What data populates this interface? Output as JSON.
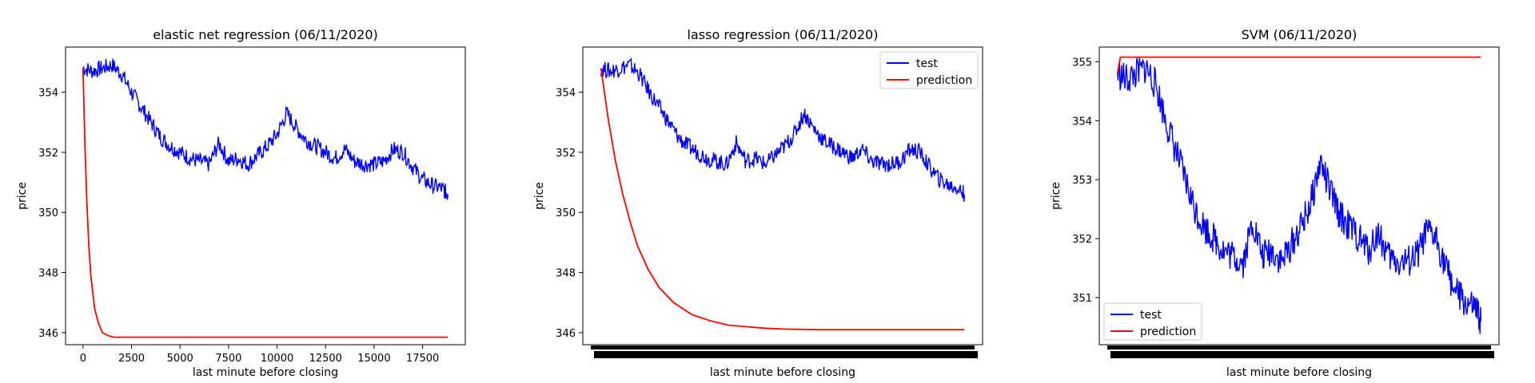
{
  "chart_data": [
    {
      "type": "line",
      "title": "elastic net regression (06/11/2020)",
      "xlabel": "last minute before closing",
      "ylabel": "price",
      "xlim": [
        -900,
        19700
      ],
      "ylim": [
        345.6,
        355.5
      ],
      "xticks": [
        0,
        2500,
        5000,
        7500,
        10000,
        12500,
        15000,
        17500
      ],
      "xtick_labels": [
        "0",
        "2500",
        "5000",
        "7500",
        "10000",
        "12500",
        "15000",
        "17500"
      ],
      "yticks": [
        346,
        348,
        350,
        352,
        354
      ],
      "ytick_labels": [
        "346",
        "348",
        "350",
        "352",
        "354"
      ],
      "legend": null,
      "series": [
        {
          "color": "#0000ff",
          "x": [
            0,
            500,
            1000,
            1500,
            2000,
            2500,
            3000,
            3500,
            4000,
            4500,
            5000,
            5500,
            6000,
            6500,
            7000,
            7500,
            8000,
            8500,
            9000,
            9500,
            10000,
            10500,
            11000,
            11500,
            12000,
            12500,
            13000,
            13500,
            14000,
            14500,
            15000,
            15500,
            16000,
            16500,
            17000,
            17500,
            18000,
            18500,
            18800
          ],
          "y": [
            354.8,
            354.7,
            354.8,
            354.9,
            354.6,
            354.0,
            353.5,
            353.0,
            352.5,
            352.2,
            352.0,
            351.8,
            351.7,
            351.6,
            352.3,
            351.7,
            351.8,
            351.6,
            351.9,
            352.2,
            352.6,
            353.3,
            352.8,
            352.4,
            352.2,
            352.0,
            351.8,
            352.1,
            351.7,
            351.6,
            351.6,
            351.7,
            352.1,
            352.0,
            351.5,
            351.1,
            350.9,
            350.8,
            350.6
          ]
        },
        {
          "color": "#ff0000",
          "x": [
            0,
            100,
            200,
            300,
            400,
            600,
            800,
            1000,
            1300,
            1600,
            2000,
            3000,
            5000,
            10000,
            15000,
            18800
          ],
          "y": [
            354.8,
            352.2,
            350.3,
            348.9,
            347.9,
            346.8,
            346.3,
            346.0,
            345.9,
            345.85,
            345.85,
            345.85,
            345.85,
            345.85,
            345.85,
            345.85
          ]
        }
      ]
    },
    {
      "type": "line",
      "title": "lasso regression (06/11/2020)",
      "xlabel": "last minute before closing",
      "ylabel": "price",
      "xlim": [
        -0.05,
        1.05
      ],
      "ylim": [
        345.6,
        355.5
      ],
      "xticks": [],
      "xtick_labels": [],
      "yticks": [
        346,
        348,
        350,
        352,
        354
      ],
      "ytick_labels": [
        "346",
        "348",
        "350",
        "352",
        "354"
      ],
      "legend": "top-right",
      "series": [
        {
          "name": "test",
          "color": "#0000ff",
          "x": [
            0,
            0.026,
            0.053,
            0.079,
            0.106,
            0.133,
            0.16,
            0.186,
            0.213,
            0.239,
            0.266,
            0.293,
            0.319,
            0.346,
            0.372,
            0.399,
            0.426,
            0.452,
            0.479,
            0.505,
            0.532,
            0.559,
            0.585,
            0.612,
            0.638,
            0.665,
            0.691,
            0.718,
            0.745,
            0.771,
            0.798,
            0.824,
            0.851,
            0.878,
            0.904,
            0.931,
            0.957,
            0.984,
            1.0
          ],
          "y": [
            354.8,
            354.7,
            354.8,
            354.9,
            354.6,
            354.0,
            353.5,
            353.0,
            352.5,
            352.2,
            352.0,
            351.8,
            351.7,
            351.6,
            352.3,
            351.7,
            351.8,
            351.6,
            351.9,
            352.2,
            352.6,
            353.3,
            352.8,
            352.4,
            352.2,
            352.0,
            351.8,
            352.1,
            351.7,
            351.6,
            351.6,
            351.7,
            352.1,
            352.0,
            351.5,
            351.1,
            350.9,
            350.8,
            350.6
          ]
        },
        {
          "name": "prediction",
          "color": "#ff0000",
          "x": [
            0,
            0.02,
            0.04,
            0.06,
            0.08,
            0.1,
            0.13,
            0.16,
            0.2,
            0.25,
            0.3,
            0.35,
            0.4,
            0.45,
            0.5,
            0.6,
            0.7,
            0.8,
            0.9,
            1.0
          ],
          "y": [
            354.8,
            353.1,
            351.7,
            350.6,
            349.7,
            348.9,
            348.1,
            347.5,
            347.0,
            346.6,
            346.4,
            346.25,
            346.2,
            346.15,
            346.12,
            346.1,
            346.1,
            346.1,
            346.1,
            346.1
          ]
        }
      ]
    },
    {
      "type": "line",
      "title": "SVM (06/11/2020)",
      "xlabel": "last minute before closing",
      "ylabel": "price",
      "xlim": [
        -0.05,
        1.05
      ],
      "ylim": [
        350.2,
        355.25
      ],
      "xticks": [],
      "xtick_labels": [],
      "yticks": [
        351,
        352,
        353,
        354,
        355
      ],
      "ytick_labels": [
        "351",
        "352",
        "353",
        "354",
        "355"
      ],
      "legend": "bottom-left",
      "series": [
        {
          "name": "test",
          "color": "#0000ff",
          "x": [
            0,
            0.026,
            0.053,
            0.079,
            0.106,
            0.133,
            0.16,
            0.186,
            0.213,
            0.239,
            0.266,
            0.293,
            0.319,
            0.346,
            0.372,
            0.399,
            0.426,
            0.452,
            0.479,
            0.505,
            0.532,
            0.559,
            0.585,
            0.612,
            0.638,
            0.665,
            0.691,
            0.718,
            0.745,
            0.771,
            0.798,
            0.824,
            0.851,
            0.878,
            0.904,
            0.931,
            0.957,
            0.984,
            1.0
          ],
          "y": [
            354.8,
            354.7,
            354.8,
            354.9,
            354.6,
            354.0,
            353.5,
            353.0,
            352.5,
            352.2,
            352.0,
            351.8,
            351.7,
            351.6,
            352.3,
            351.7,
            351.8,
            351.6,
            351.9,
            352.2,
            352.6,
            353.3,
            352.8,
            352.4,
            352.2,
            352.0,
            351.8,
            352.1,
            351.7,
            351.6,
            351.6,
            351.7,
            352.1,
            352.0,
            351.5,
            351.1,
            350.9,
            350.8,
            350.6
          ]
        },
        {
          "name": "prediction",
          "color": "#ff0000",
          "x": [
            0,
            0.008,
            0.016,
            0.5,
            1.0
          ],
          "y": [
            354.8,
            355.08,
            355.08,
            355.08,
            355.08
          ]
        }
      ]
    }
  ]
}
